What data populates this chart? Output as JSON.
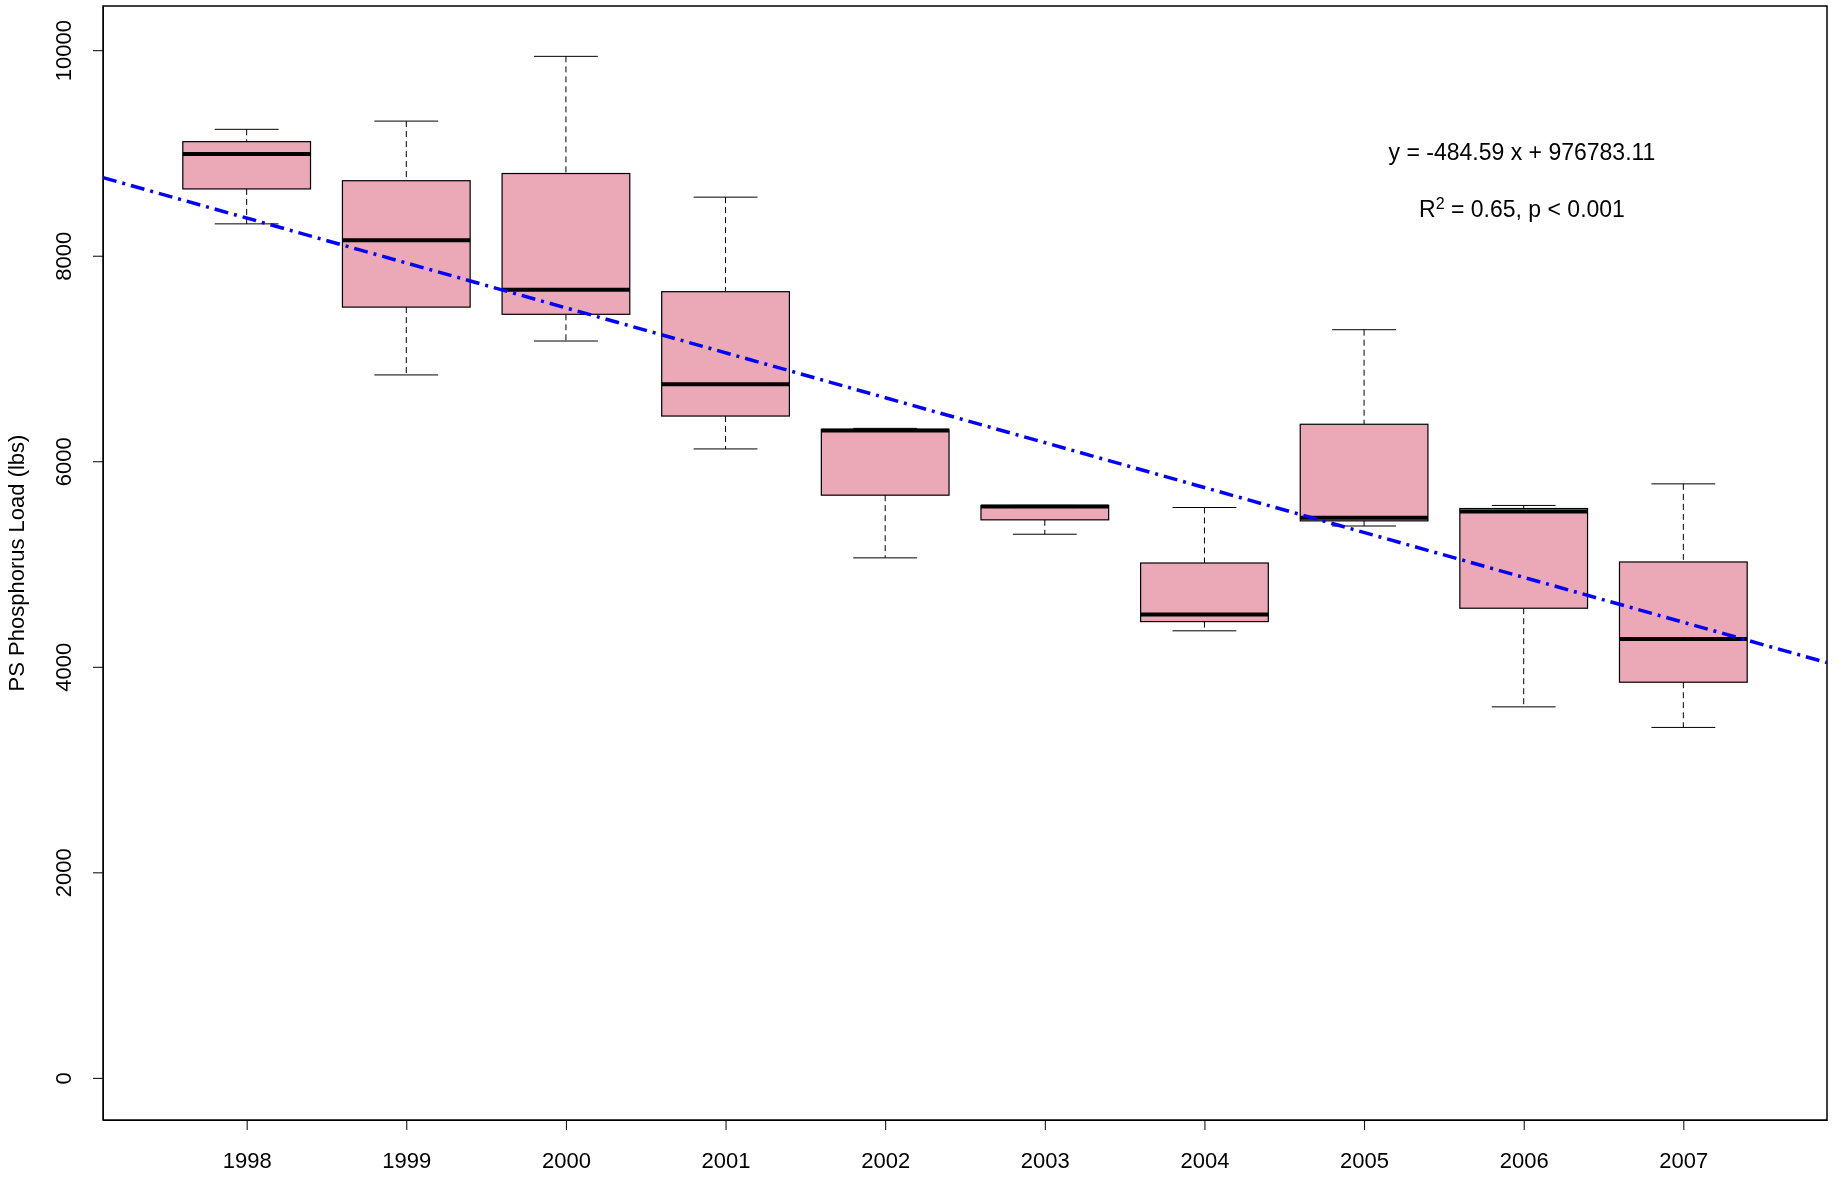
{
  "chart_data": {
    "type": "box",
    "ylabel": "PS Phosphorus Load (lbs)",
    "x": [
      1998,
      1999,
      2000,
      2001,
      2002,
      2003,
      2004,
      2005,
      2006,
      2007
    ],
    "xlim": [
      1997.1,
      2007.9
    ],
    "xticks": [
      1998,
      1999,
      2000,
      2001,
      2002,
      2003,
      2004,
      2005,
      2006,
      2007
    ],
    "ylim": [
      -410,
      10430
    ],
    "yticks": [
      0,
      2000,
      4000,
      6000,
      8000,
      10000
    ],
    "color": "#eba8b6",
    "boxes": [
      {
        "low": 8310,
        "q1": 8650,
        "median": 8990,
        "q3": 9110,
        "high": 9230
      },
      {
        "low": 6840,
        "q1": 7500,
        "median": 8150,
        "q3": 8730,
        "high": 9310
      },
      {
        "low": 7170,
        "q1": 7430,
        "median": 7670,
        "q3": 8800,
        "high": 9940
      },
      {
        "low": 6120,
        "q1": 6440,
        "median": 6750,
        "q3": 7650,
        "high": 8570
      },
      {
        "low": 5060,
        "q1": 5670,
        "median": 6300,
        "q3": 6310,
        "high": 6320
      },
      {
        "low": 5290,
        "q1": 5430,
        "median": 5560,
        "q3": 5570,
        "high": 5570
      },
      {
        "low": 4350,
        "q1": 4440,
        "median": 4510,
        "q3": 5010,
        "high": 5550
      },
      {
        "low": 5370,
        "q1": 5420,
        "median": 5450,
        "q3": 6360,
        "high": 7280
      },
      {
        "low": 3610,
        "q1": 4570,
        "median": 5510,
        "q3": 5540,
        "high": 5570
      },
      {
        "low": 3410,
        "q1": 3850,
        "median": 4270,
        "q3": 5020,
        "high": 5780
      }
    ],
    "series": [
      {
        "type": "line",
        "x": [
          1997.1,
          2007.9
        ],
        "values": [
          8760,
          4040
        ],
        "color": "#0000ff",
        "line_style": "dashed"
      }
    ],
    "annotations": [
      "y = -484.59 x + 976783.11",
      "R$^{2}$ = 0.65, p < 0.001"
    ]
  }
}
